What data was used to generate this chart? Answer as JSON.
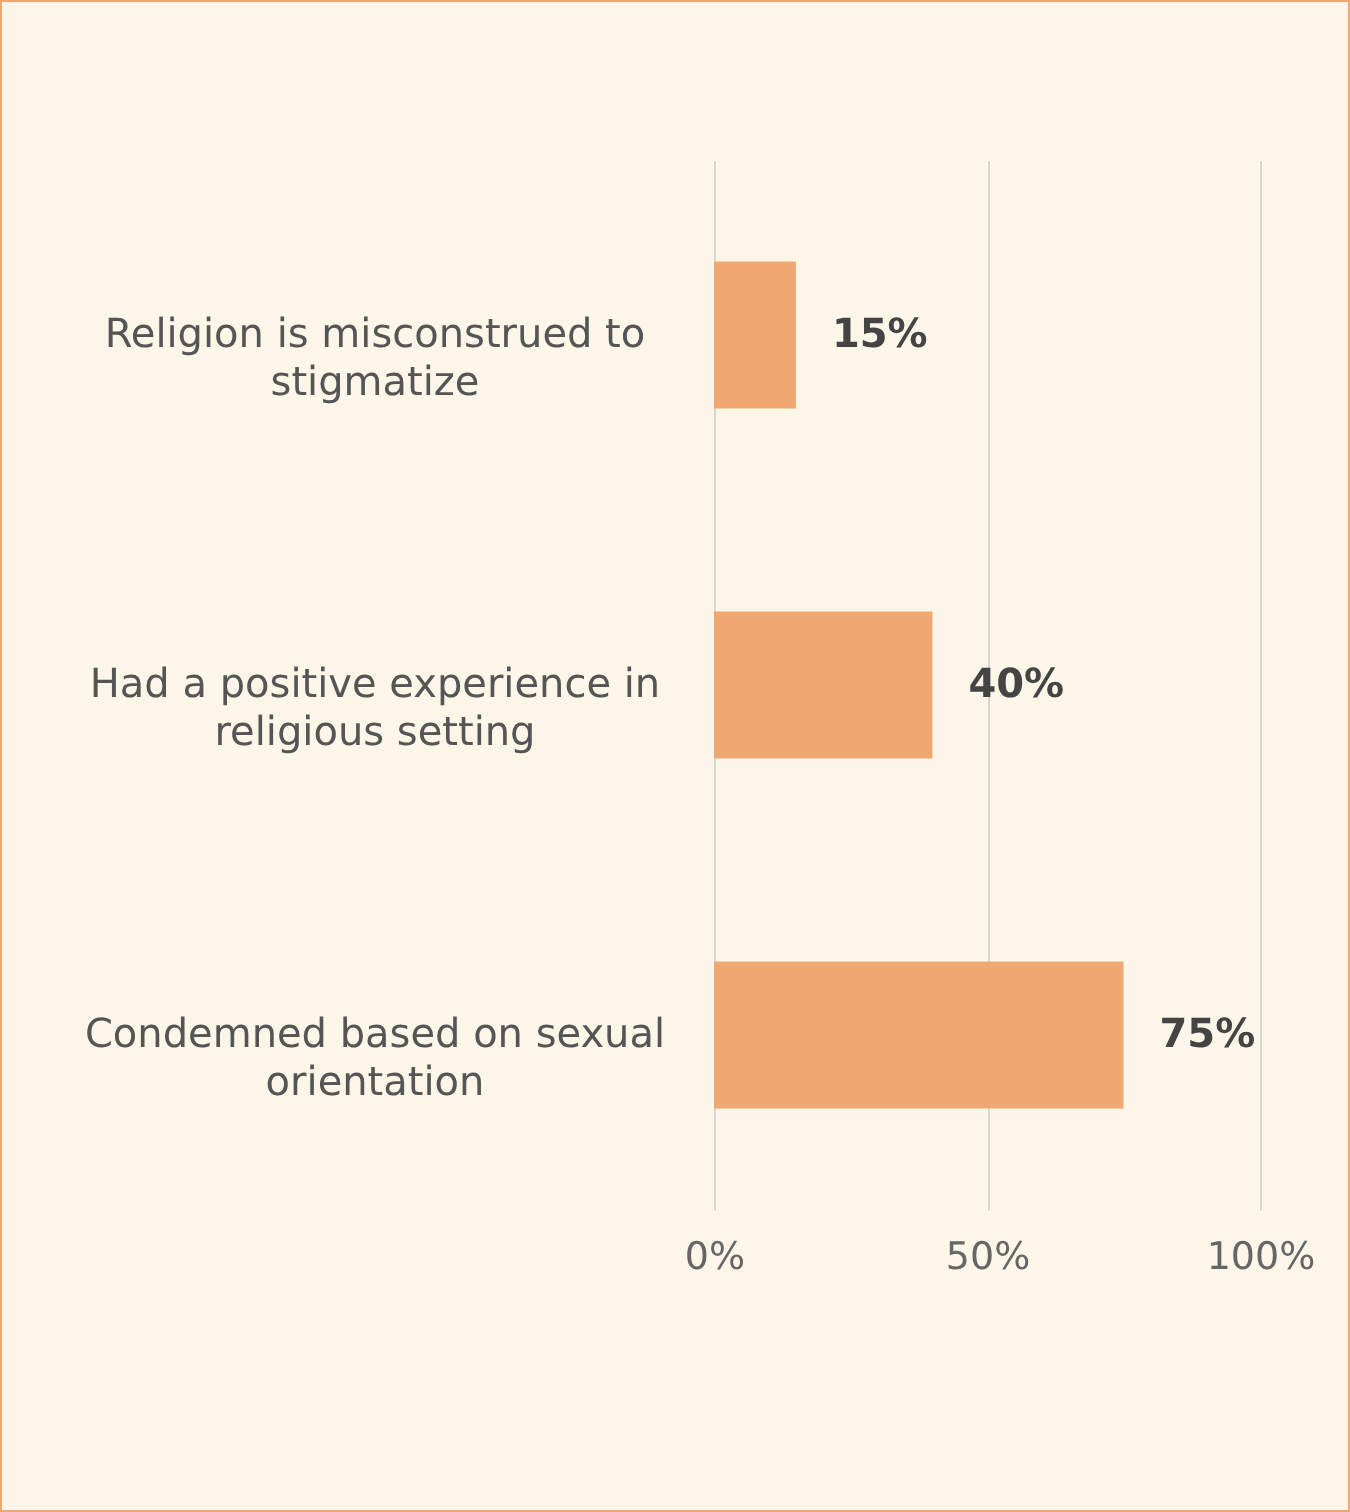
{
  "chart_data": {
    "type": "bar",
    "orientation": "horizontal",
    "categories": [
      "Religion is misconstrued to stigmatize",
      "Had a positive experience in religious setting",
      "Condemned based on sexual orientation"
    ],
    "values": [
      15,
      40,
      75
    ],
    "color": "#f0a872",
    "value_labels": [
      "15%",
      "40%",
      "75%"
    ],
    "xlim": [
      0,
      100
    ],
    "xticks": [
      {
        "value": 0,
        "label": "0%"
      },
      {
        "value": 50,
        "label": "50%"
      },
      {
        "value": 100,
        "label": "100%"
      }
    ],
    "grid": "x"
  }
}
